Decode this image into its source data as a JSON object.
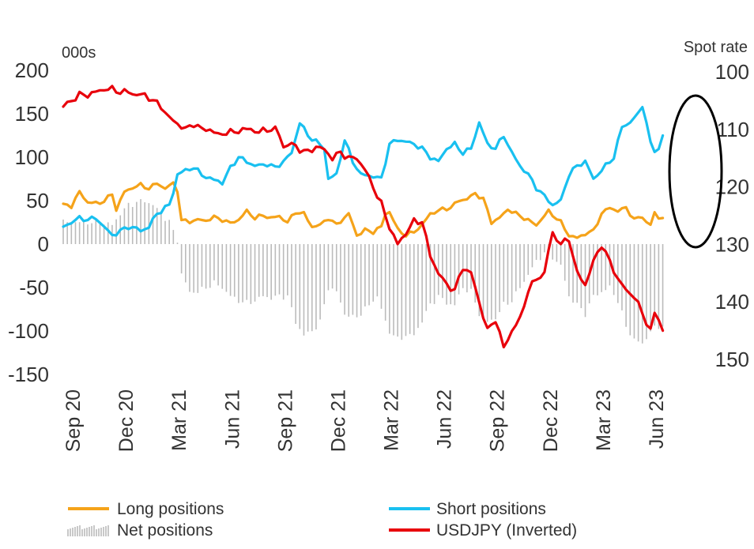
{
  "chart_data": {
    "type": "line",
    "left_axis": {
      "label": "000s",
      "ticks": [
        200,
        150,
        100,
        50,
        0,
        -50,
        -100,
        -150
      ],
      "range": [
        -150,
        200
      ]
    },
    "right_axis": {
      "label": "Spot rate",
      "ticks": [
        100,
        110,
        120,
        130,
        140,
        150
      ],
      "range": [
        100,
        150
      ],
      "inverted": true
    },
    "x_ticks": [
      "Sep 20",
      "Dec 20",
      "Mar 21",
      "Jun 21",
      "Sep 21",
      "Dec 21",
      "Mar 22",
      "Jun 22",
      "Sep 22",
      "Dec 22",
      "Mar 23",
      "Jun 23"
    ],
    "x_tick_weeks": [
      0,
      13,
      26,
      39,
      52,
      65,
      78,
      91,
      104,
      117,
      130,
      143
    ],
    "n_weeks": 156,
    "series": [
      {
        "name": "Long positions",
        "axis": "left",
        "color": "#F5A31A",
        "keyframes": [
          [
            0,
            45
          ],
          [
            2,
            44
          ],
          [
            4,
            60
          ],
          [
            6,
            48
          ],
          [
            9,
            47
          ],
          [
            12,
            57
          ],
          [
            13,
            40
          ],
          [
            15,
            60
          ],
          [
            17,
            65
          ],
          [
            19,
            68
          ],
          [
            21,
            64
          ],
          [
            23,
            70
          ],
          [
            25,
            64
          ],
          [
            27,
            70
          ],
          [
            28,
            62
          ],
          [
            29,
            27
          ],
          [
            31,
            26
          ],
          [
            33,
            28
          ],
          [
            35,
            27
          ],
          [
            37,
            31
          ],
          [
            39,
            28
          ],
          [
            41,
            24
          ],
          [
            43,
            28
          ],
          [
            45,
            38
          ],
          [
            47,
            30
          ],
          [
            49,
            33
          ],
          [
            51,
            30
          ],
          [
            53,
            32
          ],
          [
            55,
            25
          ],
          [
            57,
            37
          ],
          [
            59,
            35
          ],
          [
            61,
            20
          ],
          [
            63,
            22
          ],
          [
            65,
            30
          ],
          [
            67,
            22
          ],
          [
            70,
            35
          ],
          [
            72,
            10
          ],
          [
            74,
            16
          ],
          [
            76,
            14
          ],
          [
            78,
            20
          ],
          [
            79,
            35
          ],
          [
            80,
            37
          ],
          [
            82,
            17
          ],
          [
            84,
            10
          ],
          [
            86,
            14
          ],
          [
            88,
            22
          ],
          [
            90,
            35
          ],
          [
            93,
            40
          ],
          [
            95,
            42
          ],
          [
            97,
            50
          ],
          [
            99,
            52
          ],
          [
            101,
            58
          ],
          [
            103,
            52
          ],
          [
            105,
            25
          ],
          [
            107,
            30
          ],
          [
            109,
            40
          ],
          [
            111,
            35
          ],
          [
            113,
            30
          ],
          [
            116,
            22
          ],
          [
            119,
            38
          ],
          [
            122,
            25
          ],
          [
            124,
            10
          ],
          [
            126,
            7
          ],
          [
            128,
            12
          ],
          [
            130,
            15
          ],
          [
            132,
            35
          ],
          [
            134,
            42
          ],
          [
            136,
            38
          ],
          [
            138,
            42
          ],
          [
            140,
            28
          ],
          [
            142,
            32
          ],
          [
            143,
            25
          ],
          [
            144,
            22
          ],
          [
            145,
            36
          ],
          [
            146,
            30
          ],
          [
            147,
            30
          ]
        ]
      },
      {
        "name": "Short positions",
        "axis": "left",
        "color": "#19C0F0",
        "keyframes": [
          [
            0,
            20
          ],
          [
            2,
            25
          ],
          [
            4,
            30
          ],
          [
            6,
            28
          ],
          [
            8,
            30
          ],
          [
            10,
            20
          ],
          [
            12,
            10
          ],
          [
            14,
            15
          ],
          [
            16,
            20
          ],
          [
            18,
            18
          ],
          [
            19,
            15
          ],
          [
            21,
            20
          ],
          [
            23,
            35
          ],
          [
            26,
            45
          ],
          [
            27,
            60
          ],
          [
            28,
            80
          ],
          [
            30,
            85
          ],
          [
            32,
            88
          ],
          [
            34,
            80
          ],
          [
            36,
            75
          ],
          [
            38,
            73
          ],
          [
            39,
            70
          ],
          [
            41,
            88
          ],
          [
            43,
            100
          ],
          [
            45,
            95
          ],
          [
            47,
            90
          ],
          [
            50,
            92
          ],
          [
            52,
            88
          ],
          [
            54,
            95
          ],
          [
            56,
            105
          ],
          [
            58,
            140
          ],
          [
            60,
            125
          ],
          [
            62,
            118
          ],
          [
            64,
            110
          ],
          [
            65,
            75
          ],
          [
            67,
            80
          ],
          [
            69,
            120
          ],
          [
            71,
            95
          ],
          [
            73,
            80
          ],
          [
            76,
            78
          ],
          [
            78,
            75
          ],
          [
            80,
            115
          ],
          [
            82,
            120
          ],
          [
            84,
            118
          ],
          [
            86,
            115
          ],
          [
            88,
            110
          ],
          [
            90,
            100
          ],
          [
            92,
            95
          ],
          [
            94,
            110
          ],
          [
            96,
            115
          ],
          [
            98,
            105
          ],
          [
            100,
            110
          ],
          [
            102,
            140
          ],
          [
            104,
            115
          ],
          [
            106,
            110
          ],
          [
            108,
            125
          ],
          [
            110,
            105
          ],
          [
            112,
            90
          ],
          [
            114,
            80
          ],
          [
            116,
            65
          ],
          [
            118,
            55
          ],
          [
            120,
            45
          ],
          [
            122,
            50
          ],
          [
            124,
            80
          ],
          [
            126,
            90
          ],
          [
            128,
            95
          ],
          [
            130,
            75
          ],
          [
            132,
            85
          ],
          [
            134,
            95
          ],
          [
            135,
            100
          ],
          [
            137,
            135
          ],
          [
            139,
            140
          ],
          [
            141,
            150
          ],
          [
            142,
            160
          ],
          [
            143,
            140
          ],
          [
            144,
            115
          ],
          [
            145,
            108
          ],
          [
            146,
            110
          ],
          [
            147,
            125
          ]
        ]
      },
      {
        "name": "USDJPY (Inverted)",
        "axis": "right",
        "color": "#E8000B",
        "keyframes": [
          [
            0,
            106
          ],
          [
            2,
            105
          ],
          [
            4,
            104
          ],
          [
            6,
            104
          ],
          [
            8,
            103.5
          ],
          [
            10,
            103
          ],
          [
            12,
            103
          ],
          [
            14,
            103.5
          ],
          [
            16,
            103.5
          ],
          [
            18,
            104
          ],
          [
            20,
            104
          ],
          [
            22,
            105
          ],
          [
            24,
            106
          ],
          [
            26,
            108
          ],
          [
            28,
            109
          ],
          [
            30,
            110
          ],
          [
            32,
            109
          ],
          [
            34,
            110
          ],
          [
            36,
            110
          ],
          [
            38,
            111
          ],
          [
            40,
            110.5
          ],
          [
            42,
            110.5
          ],
          [
            44,
            110
          ],
          [
            46,
            110
          ],
          [
            48,
            110.5
          ],
          [
            50,
            110
          ],
          [
            52,
            110
          ],
          [
            53,
            111
          ],
          [
            54,
            113
          ],
          [
            56,
            112.5
          ],
          [
            58,
            113.5
          ],
          [
            60,
            114
          ],
          [
            62,
            113
          ],
          [
            64,
            113.5
          ],
          [
            66,
            115
          ],
          [
            68,
            114
          ],
          [
            70,
            115
          ],
          [
            72,
            115
          ],
          [
            74,
            117
          ],
          [
            76,
            120
          ],
          [
            78,
            123
          ],
          [
            80,
            127
          ],
          [
            82,
            130
          ],
          [
            84,
            128
          ],
          [
            86,
            126
          ],
          [
            88,
            126
          ],
          [
            90,
            132
          ],
          [
            92,
            135
          ],
          [
            94,
            137
          ],
          [
            96,
            138
          ],
          [
            98,
            134
          ],
          [
            100,
            135
          ],
          [
            102,
            140
          ],
          [
            104,
            145
          ],
          [
            106,
            143
          ],
          [
            108,
            148
          ],
          [
            110,
            145
          ],
          [
            112,
            143
          ],
          [
            114,
            138
          ],
          [
            116,
            136
          ],
          [
            118,
            135
          ],
          [
            119,
            131
          ],
          [
            120,
            128
          ],
          [
            122,
            130
          ],
          [
            124,
            129
          ],
          [
            126,
            135
          ],
          [
            128,
            137
          ],
          [
            130,
            133
          ],
          [
            132,
            130
          ],
          [
            134,
            133
          ],
          [
            136,
            136
          ],
          [
            138,
            138
          ],
          [
            140,
            139
          ],
          [
            142,
            142
          ],
          [
            144,
            145
          ],
          [
            145,
            142
          ],
          [
            146,
            143
          ],
          [
            147,
            145
          ]
        ]
      },
      {
        "name": "Net positions",
        "axis": "left",
        "color": "#BBBBBB",
        "keyframes": [
          [
            0,
            25
          ],
          [
            3,
            25
          ],
          [
            6,
            25
          ],
          [
            9,
            25
          ],
          [
            12,
            22
          ],
          [
            14,
            35
          ],
          [
            16,
            45
          ],
          [
            18,
            48
          ],
          [
            20,
            50
          ],
          [
            22,
            45
          ],
          [
            24,
            35
          ],
          [
            26,
            25
          ],
          [
            28,
            5
          ],
          [
            29,
            -35
          ],
          [
            31,
            -55
          ],
          [
            33,
            -55
          ],
          [
            35,
            -50
          ],
          [
            37,
            -45
          ],
          [
            39,
            -50
          ],
          [
            41,
            -60
          ],
          [
            43,
            -65
          ],
          [
            45,
            -68
          ],
          [
            47,
            -65
          ],
          [
            49,
            -60
          ],
          [
            51,
            -62
          ],
          [
            53,
            -60
          ],
          [
            55,
            -60
          ],
          [
            57,
            -90
          ],
          [
            59,
            -105
          ],
          [
            61,
            -100
          ],
          [
            63,
            -90
          ],
          [
            65,
            -50
          ],
          [
            67,
            -55
          ],
          [
            69,
            -80
          ],
          [
            71,
            -85
          ],
          [
            73,
            -80
          ],
          [
            75,
            -70
          ],
          [
            77,
            -60
          ],
          [
            79,
            -90
          ],
          [
            80,
            -100
          ],
          [
            82,
            -110
          ],
          [
            84,
            -105
          ],
          [
            86,
            -105
          ],
          [
            88,
            -88
          ],
          [
            90,
            -70
          ],
          [
            92,
            -60
          ],
          [
            94,
            -68
          ],
          [
            96,
            -70
          ],
          [
            98,
            -50
          ],
          [
            100,
            -55
          ],
          [
            102,
            -80
          ],
          [
            104,
            -90
          ],
          [
            106,
            -85
          ],
          [
            108,
            -70
          ],
          [
            110,
            -65
          ],
          [
            112,
            -50
          ],
          [
            114,
            -35
          ],
          [
            116,
            -20
          ],
          [
            118,
            -10
          ],
          [
            120,
            -15
          ],
          [
            122,
            -25
          ],
          [
            124,
            -60
          ],
          [
            126,
            -70
          ],
          [
            128,
            -80
          ],
          [
            130,
            -60
          ],
          [
            132,
            -55
          ],
          [
            134,
            -50
          ],
          [
            136,
            -65
          ],
          [
            138,
            -95
          ],
          [
            140,
            -110
          ],
          [
            142,
            -115
          ],
          [
            144,
            -100
          ],
          [
            146,
            -95
          ],
          [
            147,
            -95
          ]
        ]
      }
    ],
    "legend": {
      "placement": "bottom",
      "items": [
        "Long positions",
        "Short positions",
        "Net positions",
        "USDJPY (Inverted)"
      ]
    },
    "annotation": "ellipse highlighting recent readings"
  }
}
